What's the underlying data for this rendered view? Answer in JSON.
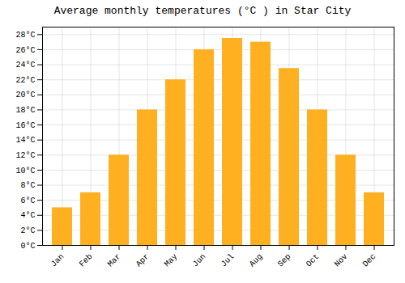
{
  "chart_data": {
    "type": "bar",
    "title": "Average monthly temperatures (°C ) in Star City",
    "categories": [
      "Jan",
      "Feb",
      "Mar",
      "Apr",
      "May",
      "Jun",
      "Jul",
      "Aug",
      "Sep",
      "Oct",
      "Nov",
      "Dec"
    ],
    "values": [
      5,
      7,
      12,
      18,
      22,
      26,
      27.5,
      27,
      23.5,
      18,
      12,
      7
    ],
    "color": "#FFB020",
    "ylim": [
      0,
      29
    ],
    "yticks": [
      {
        "value": 0,
        "label": "0°C"
      },
      {
        "value": 2,
        "label": "2°C"
      },
      {
        "value": 4,
        "label": "4°C"
      },
      {
        "value": 6,
        "label": "6°C"
      },
      {
        "value": 8,
        "label": "8°C"
      },
      {
        "value": 10,
        "label": "10°C"
      },
      {
        "value": 12,
        "label": "12°C"
      },
      {
        "value": 14,
        "label": "14°C"
      },
      {
        "value": 16,
        "label": "16°C"
      },
      {
        "value": 18,
        "label": "18°C"
      },
      {
        "value": 20,
        "label": "20°C"
      },
      {
        "value": 22,
        "label": "22°C"
      },
      {
        "value": 24,
        "label": "24°C"
      },
      {
        "value": 26,
        "label": "26°C"
      },
      {
        "value": 28,
        "label": "28°C"
      }
    ],
    "grid": true
  }
}
